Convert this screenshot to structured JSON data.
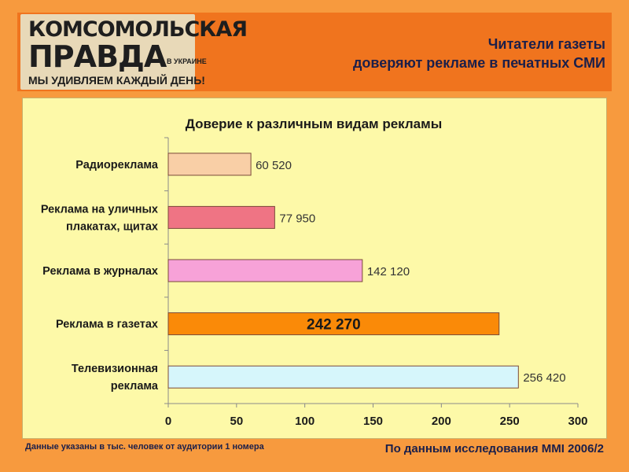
{
  "logo": {
    "line1": "КОМСОМОЛЬСКАЯ",
    "line2": "ПРАВДА",
    "line2_sub": "В УКРАИНЕ",
    "slogan": "МЫ УДИВЛЯЕМ КАЖДЫЙ ДЕНЬ!"
  },
  "headline": {
    "line1": "Читатели газеты",
    "line2": "доверяют рекламе в печатных СМИ"
  },
  "chart_data": {
    "type": "bar",
    "orientation": "horizontal",
    "title": "Доверие к различным видам рекламы",
    "categories": [
      [
        "Радиореклама"
      ],
      [
        "Реклама на уличных",
        "плакатах, щитах"
      ],
      [
        "Реклама в журналах"
      ],
      [
        "Реклама в газетах"
      ],
      [
        "Телевизионная",
        "реклама"
      ]
    ],
    "values": [
      60.52,
      77.95,
      142.12,
      242.27,
      256.42
    ],
    "value_labels": [
      "60 520",
      "77 950",
      "142 120",
      "242 270",
      "256 420"
    ],
    "bar_colors": [
      "#f9cfa6",
      "#ef7484",
      "#f7a2d8",
      "#fa8a08",
      "#d6f6fb"
    ],
    "highlight_index": 3,
    "xlim": [
      0,
      300
    ],
    "xticks": [
      "0",
      "50",
      "100",
      "150",
      "200",
      "250",
      "300"
    ],
    "grid": false
  },
  "footnote": "Данные указаны в тыс. человек от аудитории 1 номера",
  "source": "По данным исследования MMI 2006/2"
}
